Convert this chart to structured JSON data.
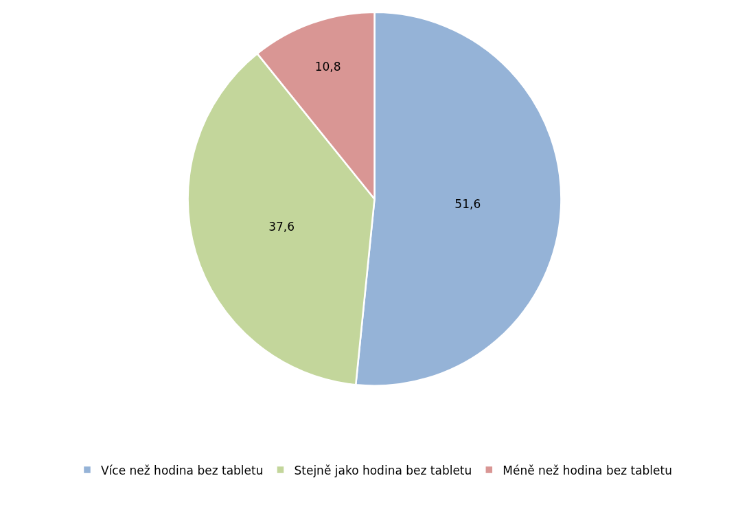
{
  "chart_data": {
    "type": "pie",
    "categories": [
      "Více než hodina bez tabletu",
      "Stejně jako hodina bez tabletu",
      "Méně než hodina bez tabletu"
    ],
    "values": [
      51.6,
      37.6,
      10.8
    ],
    "colors": [
      "#95b3d7",
      "#c3d69b",
      "#d99694"
    ],
    "value_labels": [
      "51,6",
      "37,6",
      "10,8"
    ],
    "legend": "bottom"
  }
}
